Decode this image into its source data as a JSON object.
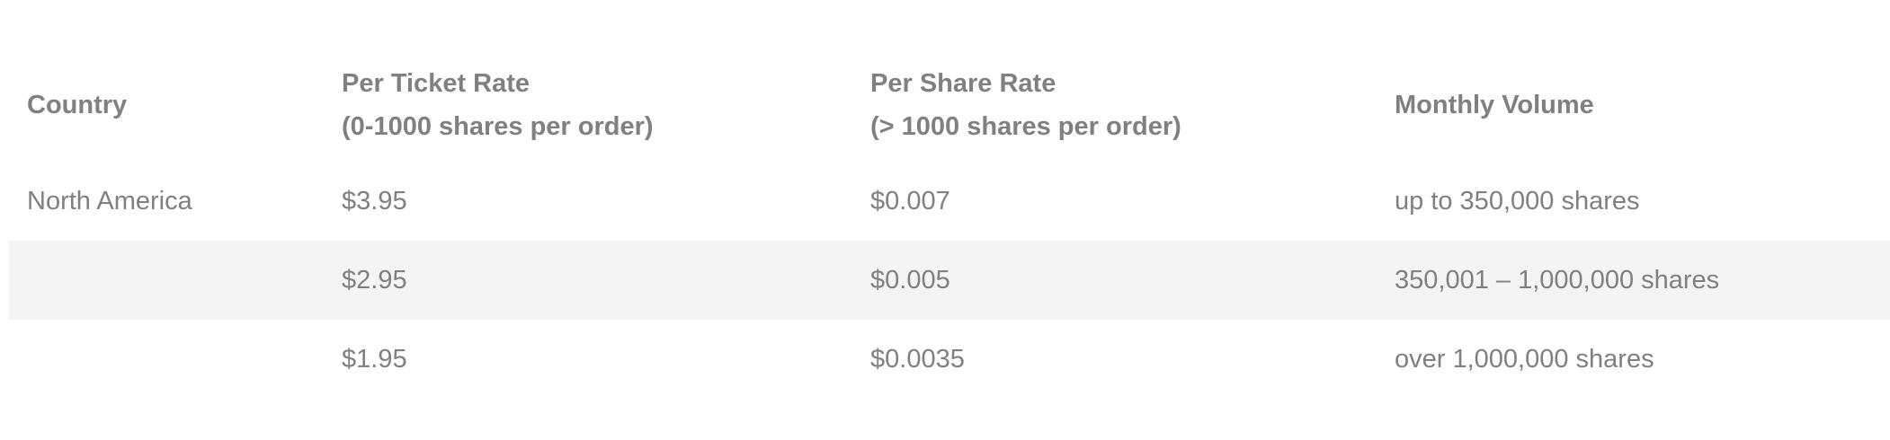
{
  "table": {
    "headers": {
      "country": "Country",
      "per_ticket": {
        "line1": "Per Ticket Rate",
        "line2": "(0-1000 shares per order)"
      },
      "per_share": {
        "line1": "Per Share Rate",
        "line2": "(> 1000 shares per order)"
      },
      "monthly_volume": "Monthly Volume"
    },
    "rows": [
      {
        "country": "North America",
        "per_ticket": "$3.95",
        "per_share": "$0.007",
        "volume": "up to 350,000 shares"
      },
      {
        "country": "",
        "per_ticket": "$2.95",
        "per_share": "$0.005",
        "volume": "350,001 – 1,000,000 shares"
      },
      {
        "country": "",
        "per_ticket": "$1.95",
        "per_share": "$0.0035",
        "volume": "over 1,000,000 shares"
      }
    ]
  },
  "colors": {
    "text": "#808080",
    "alt_row_background": "#f4f4f4",
    "background": "#ffffff"
  }
}
